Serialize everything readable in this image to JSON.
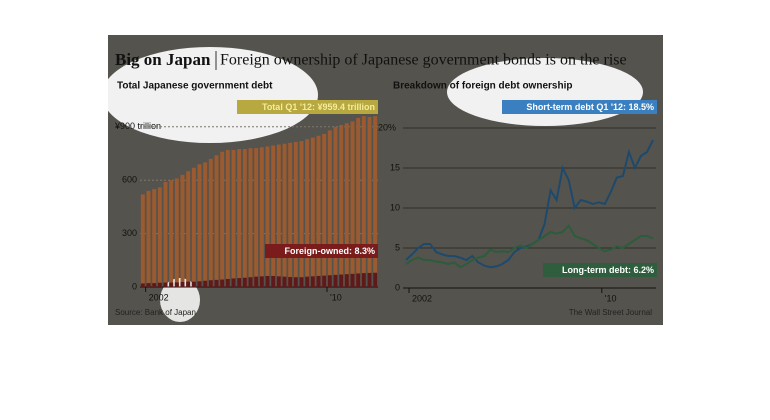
{
  "title": "Big on Japan",
  "subtitle": "Foreign ownership of Japanese government bonds is on the rise",
  "source": "Source: Bank of Japan",
  "credit": "The Wall Street Journal",
  "chart_data": [
    {
      "type": "bar",
      "title": "Total Japanese government debt",
      "categories": [
        null,
        "2002",
        null,
        null,
        null,
        null,
        null,
        null,
        null,
        null,
        null,
        null,
        null,
        null,
        null,
        null,
        null,
        null,
        null,
        null,
        null,
        null,
        null,
        null,
        null,
        null,
        null,
        null,
        null,
        null,
        null,
        null,
        null,
        "'10",
        null,
        null,
        null,
        null,
        null,
        null,
        null,
        null
      ],
      "series": [
        {
          "name": "Total Q1 '12: ¥959.4 trillion",
          "color": "#9c5a30",
          "values": [
            520,
            540,
            550,
            560,
            590,
            600,
            610,
            630,
            650,
            670,
            690,
            700,
            720,
            740,
            760,
            770,
            770,
            775,
            775,
            780,
            780,
            785,
            790,
            795,
            800,
            805,
            810,
            815,
            820,
            830,
            840,
            850,
            860,
            880,
            900,
            910,
            920,
            930,
            950,
            960,
            955,
            959.4
          ]
        },
        {
          "name": "Foreign-owned: 8.3%",
          "color": "#5e1a1a",
          "values": [
            20,
            22,
            22,
            24,
            25,
            25,
            26,
            28,
            30,
            30,
            32,
            35,
            38,
            40,
            42,
            45,
            48,
            50,
            52,
            55,
            58,
            60,
            62,
            62,
            60,
            58,
            56,
            55,
            55,
            58,
            60,
            62,
            64,
            66,
            68,
            70,
            72,
            74,
            76,
            78,
            79,
            80
          ]
        }
      ],
      "ylim": [
        0,
        1000
      ],
      "yticks": [
        0,
        300,
        600,
        {
          "value": 900,
          "label": "¥900 trillion"
        }
      ],
      "grid": true
    },
    {
      "type": "line",
      "title": "Breakdown of foreign debt ownership",
      "categories": [
        null,
        "2002",
        null,
        null,
        null,
        null,
        null,
        null,
        null,
        null,
        null,
        null,
        null,
        null,
        null,
        null,
        null,
        null,
        null,
        null,
        null,
        null,
        null,
        null,
        null,
        null,
        null,
        null,
        null,
        null,
        null,
        null,
        null,
        "'10",
        null,
        null,
        null,
        null,
        null,
        null,
        null,
        null
      ],
      "series": [
        {
          "name": "Short-term debt Q1 '12: 18.5%",
          "color": "#1d4a6c",
          "values": [
            3.5,
            4.2,
            5.0,
            5.5,
            5.5,
            4.5,
            4.2,
            4.0,
            4.0,
            3.8,
            3.5,
            4.0,
            3.2,
            2.8,
            2.6,
            2.7,
            3.0,
            3.5,
            4.5,
            5.0,
            5.2,
            5.5,
            6.0,
            8.0,
            12.2,
            11.0,
            15.0,
            13.5,
            10.0,
            11.0,
            10.8,
            10.5,
            10.7,
            10.5,
            12.0,
            13.8,
            14.0,
            17.0,
            15.0,
            16.5,
            17.0,
            18.5
          ]
        },
        {
          "name": "Long-term debt: 6.2%",
          "color": "#2c5c3c",
          "values": [
            3.0,
            3.5,
            3.8,
            3.5,
            3.5,
            3.3,
            3.2,
            3.0,
            3.2,
            2.6,
            3.0,
            3.5,
            3.8,
            4.0,
            4.8,
            4.5,
            4.6,
            4.5,
            5.0,
            5.3,
            5.0,
            5.5,
            6.0,
            6.5,
            7.0,
            6.8,
            7.0,
            7.8,
            6.5,
            6.2,
            6.0,
            5.5,
            5.0,
            4.6,
            4.8,
            5.2,
            5.0,
            5.5,
            6.0,
            6.5,
            6.5,
            6.2
          ]
        }
      ],
      "ylim": [
        0,
        22
      ],
      "yticks": [
        0,
        5,
        10,
        15,
        {
          "value": 20,
          "label": "20%"
        }
      ],
      "grid": true
    }
  ]
}
